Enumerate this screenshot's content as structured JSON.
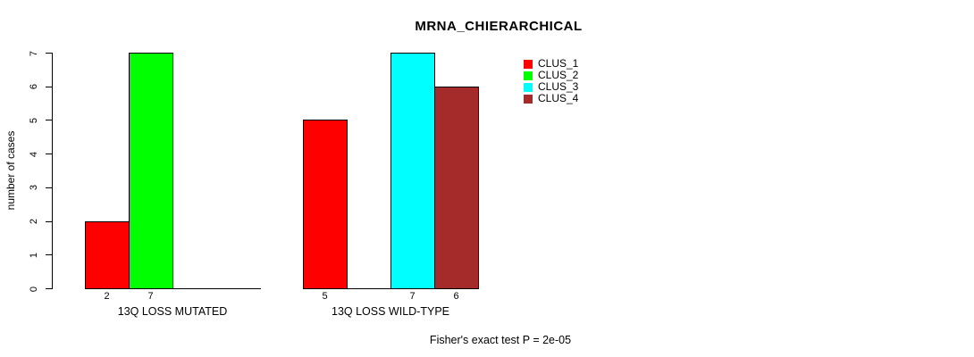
{
  "chart_data": {
    "type": "bar",
    "title": "MRNA_CHIERARCHICAL",
    "ylabel": "number of cases",
    "xlabel": "",
    "ylim": [
      0,
      7
    ],
    "yticks": [
      0,
      1,
      2,
      3,
      4,
      5,
      6,
      7
    ],
    "grid": false,
    "legend_position": "top-right",
    "value_labels": "shown below non-zero bars",
    "categories": [
      "13Q LOSS MUTATED",
      "13Q LOSS WILD-TYPE"
    ],
    "series": [
      {
        "name": "CLUS_1",
        "color": "#ff0000",
        "values": [
          2,
          5
        ]
      },
      {
        "name": "CLUS_2",
        "color": "#00ff00",
        "values": [
          7,
          0
        ]
      },
      {
        "name": "CLUS_3",
        "color": "#00ffff",
        "values": [
          0,
          7
        ]
      },
      {
        "name": "CLUS_4",
        "color": "#a52a2a",
        "values": [
          0,
          6
        ]
      }
    ],
    "annotation": "Fisher's exact test P = 2e-05"
  }
}
